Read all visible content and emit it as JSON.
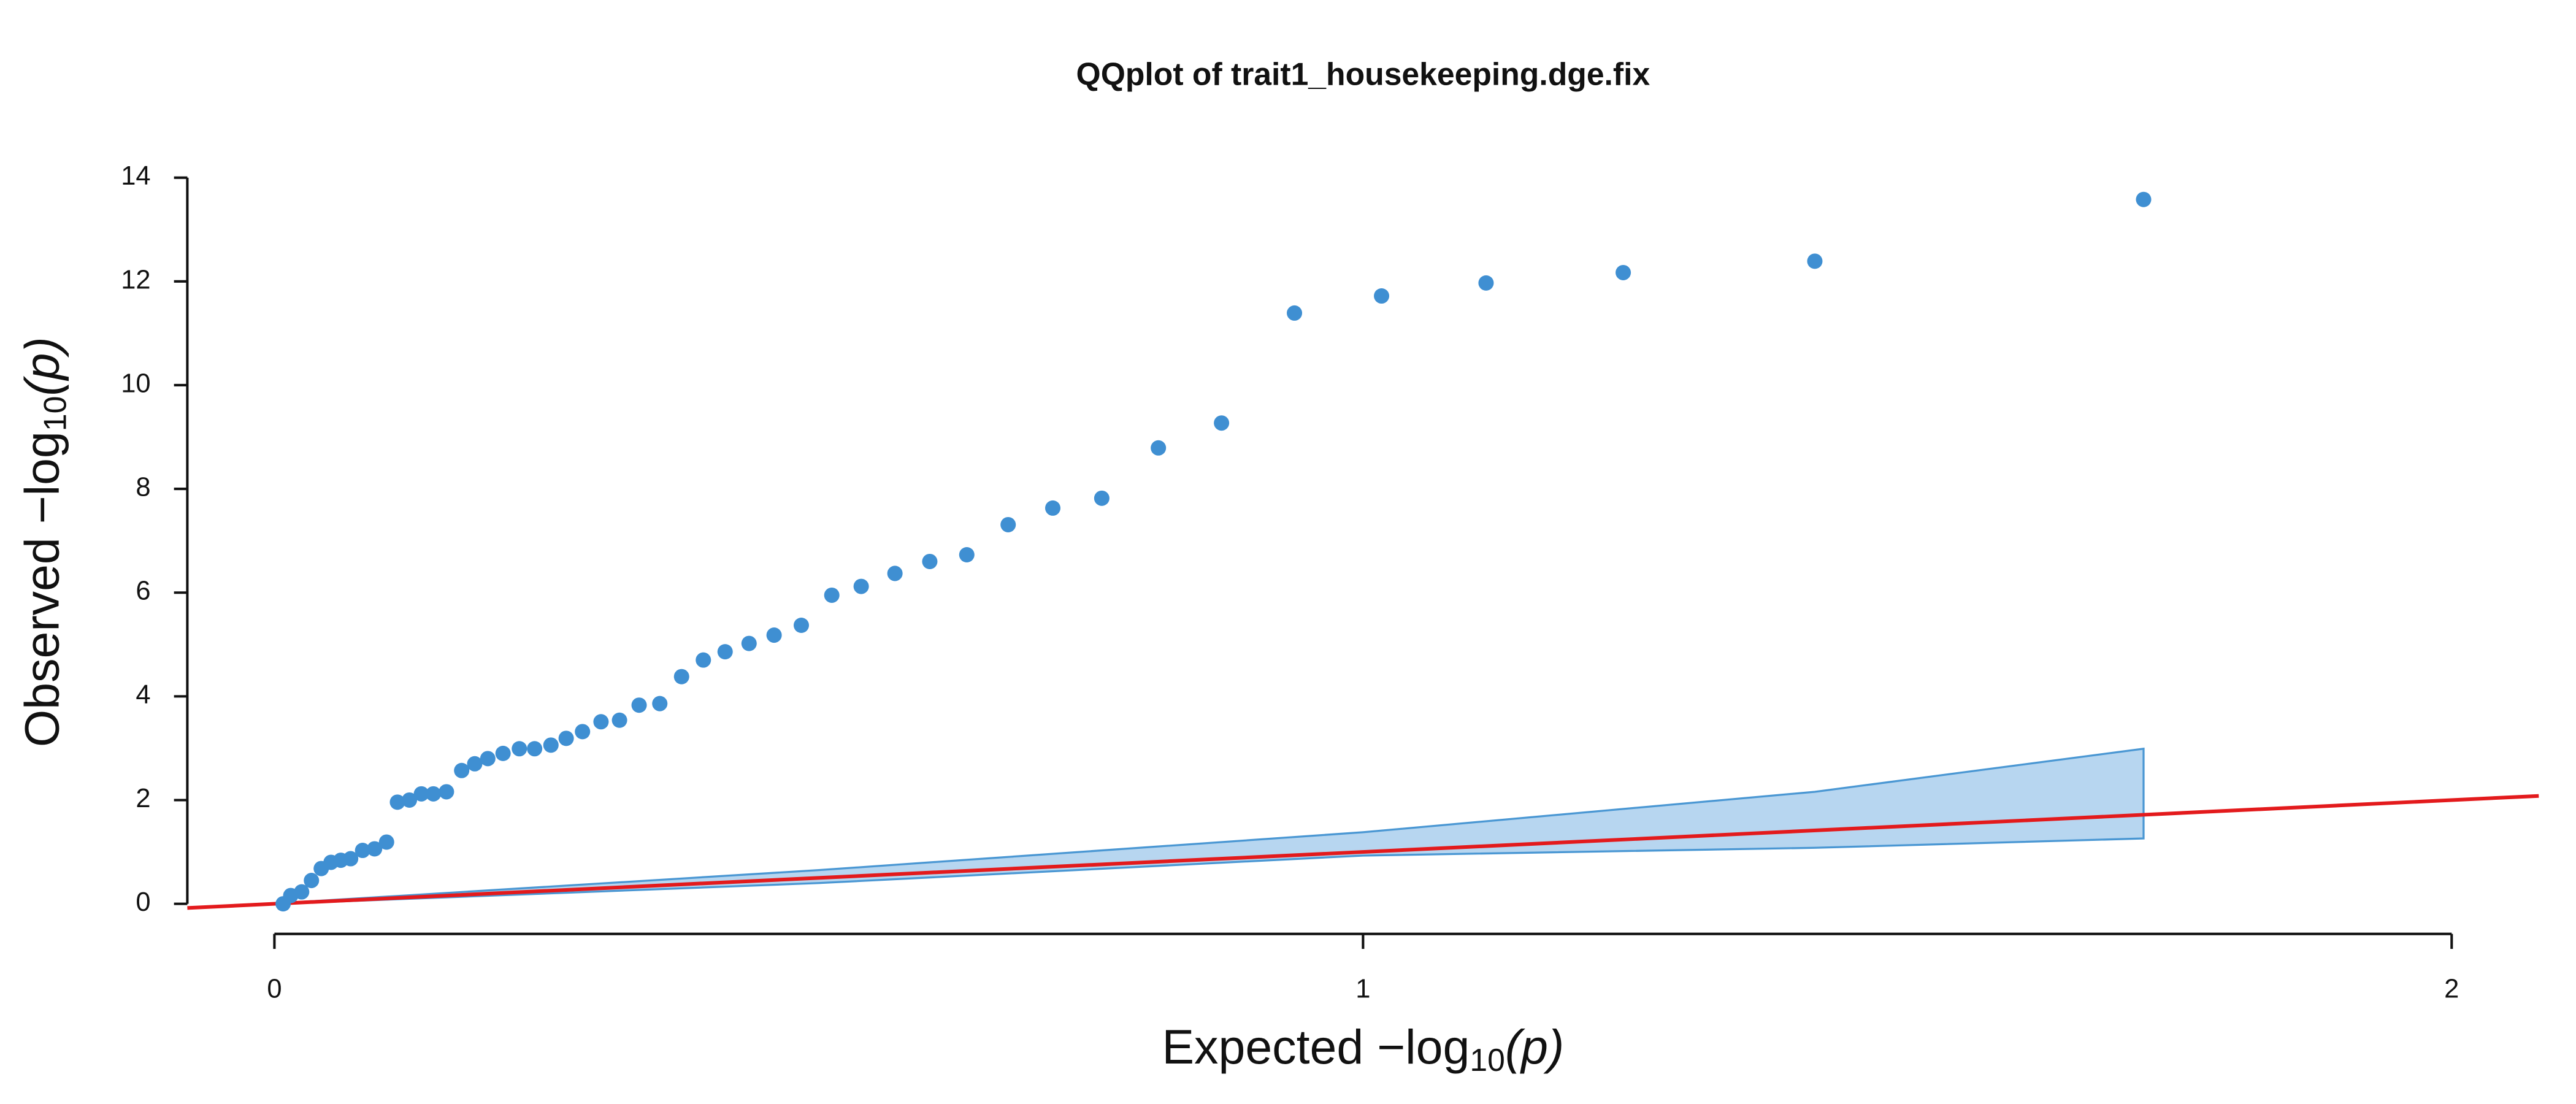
{
  "chart_data": {
    "type": "scatter",
    "title": "QQplot of trait1_housekeeping.dge.fix",
    "x_label": {
      "prefix": "Expected  −log",
      "subscript": "10",
      "suffix": "(p)"
    },
    "y_label": {
      "prefix": "Observed  −log",
      "subscript": "10",
      "suffix": "(p)"
    },
    "xlim": [
      -0.08,
      2.08
    ],
    "ylim": [
      -0.58,
      14.5
    ],
    "xticks": [
      0,
      1,
      2
    ],
    "yticks": [
      0,
      2,
      4,
      6,
      8,
      10,
      12,
      14
    ],
    "identity_line_color": "#e31a1c",
    "confidence_band": {
      "color": "#b7d6f0",
      "edge_color": "#4a97d3",
      "x": [
        0.003,
        0.5,
        1,
        1.415,
        1.717
      ],
      "upper": [
        0.01,
        0.65,
        1.38,
        2.16,
        2.99
      ],
      "lower": [
        0.0,
        0.4,
        0.93,
        1.08,
        1.26
      ]
    },
    "series": [
      {
        "color": "#3f8fd2",
        "x": [
          0.008,
          0.015,
          0.025,
          0.034,
          0.043,
          0.052,
          0.061,
          0.07,
          0.081,
          0.092,
          0.103,
          0.113,
          0.124,
          0.135,
          0.146,
          0.158,
          0.172,
          0.184,
          0.196,
          0.21,
          0.225,
          0.239,
          0.254,
          0.268,
          0.283,
          0.3,
          0.317,
          0.335,
          0.354,
          0.374,
          0.394,
          0.414,
          0.436,
          0.459,
          0.484,
          0.512,
          0.539,
          0.57,
          0.602,
          0.636,
          0.674,
          0.715,
          0.76,
          0.812,
          0.87,
          0.937,
          1.017,
          1.113,
          1.239,
          1.415,
          1.717
        ],
        "values": [
          0,
          0.16,
          0.23,
          0.45,
          0.68,
          0.8,
          0.84,
          0.87,
          1.03,
          1.06,
          1.19,
          1.96,
          2.0,
          2.12,
          2.12,
          2.16,
          2.57,
          2.7,
          2.8,
          2.9,
          2.99,
          2.99,
          3.06,
          3.19,
          3.32,
          3.51,
          3.54,
          3.83,
          3.86,
          4.38,
          4.7,
          4.86,
          5.02,
          5.18,
          5.37,
          5.95,
          6.12,
          6.37,
          6.6,
          6.73,
          7.31,
          7.63,
          7.82,
          8.79,
          9.27,
          11.39,
          11.72,
          11.97,
          12.17,
          12.39,
          13.58
        ]
      }
    ]
  }
}
